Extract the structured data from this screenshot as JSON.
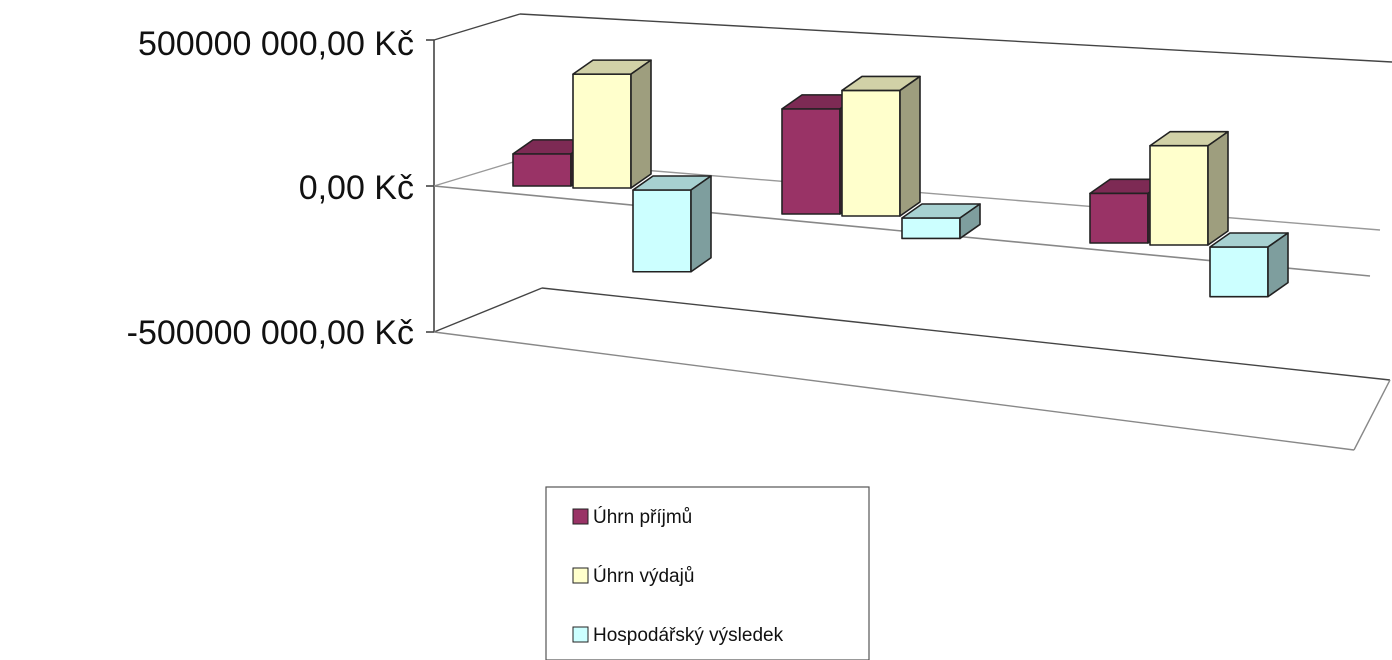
{
  "chart_data": {
    "type": "bar",
    "title": "",
    "xlabel": "",
    "ylabel": "",
    "three_d": true,
    "grid": true,
    "legend_position": "bottom",
    "y_ticks": [
      {
        "value": 500000000,
        "label": "500000 000,00 Kč"
      },
      {
        "value": 0,
        "label": "0,00 Kč"
      },
      {
        "value": -500000000,
        "label": "-500000 000,00 Kč"
      }
    ],
    "ylim": [
      -500000000,
      500000000
    ],
    "categories": [
      "",
      "",
      ""
    ],
    "series": [
      {
        "name": "Úhrn příjmů",
        "color": "#993366",
        "values": [
          110000000,
          360000000,
          170000000
        ]
      },
      {
        "name": "Úhrn výdajů",
        "color": "#ffffcc",
        "values": [
          390000000,
          430000000,
          340000000
        ]
      },
      {
        "name": "Hospodářský výsledek",
        "color": "#ccffff",
        "values": [
          -280000000,
          -70000000,
          -170000000
        ]
      }
    ]
  }
}
